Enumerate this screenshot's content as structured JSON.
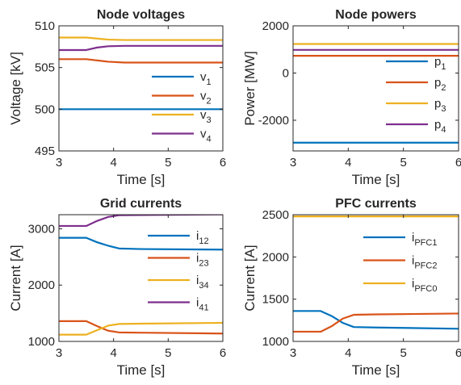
{
  "chart_data": [
    {
      "type": "line",
      "title": "Node voltages",
      "xlabel": "Time [s]",
      "ylabel": "Voltage [kV]",
      "xlim": [
        3,
        6
      ],
      "ylim": [
        495,
        510
      ],
      "xticks": [
        "3",
        "4",
        "5",
        "6"
      ],
      "yticks": [
        "495",
        "500",
        "505",
        "510"
      ],
      "legend_loc": "right",
      "series": [
        {
          "name": "v",
          "sub": "1",
          "color": "#0072BD",
          "x": [
            3,
            6
          ],
          "y": [
            500.0,
            500.0
          ]
        },
        {
          "name": "v",
          "sub": "2",
          "color": "#D95319",
          "x": [
            3,
            3.5,
            3.9,
            4.2,
            6
          ],
          "y": [
            506.0,
            506.0,
            505.7,
            505.6,
            505.6
          ]
        },
        {
          "name": "v",
          "sub": "3",
          "color": "#EDB120",
          "x": [
            3,
            3.5,
            3.9,
            4.2,
            6
          ],
          "y": [
            508.6,
            508.6,
            508.35,
            508.3,
            508.3
          ]
        },
        {
          "name": "v",
          "sub": "4",
          "color": "#7E2F8E",
          "x": [
            3,
            3.5,
            3.7,
            3.9,
            4.2,
            6
          ],
          "y": [
            507.1,
            507.1,
            507.4,
            507.55,
            507.6,
            507.6
          ]
        }
      ]
    },
    {
      "type": "line",
      "title": "Node powers",
      "xlabel": "Time [s]",
      "ylabel": "Power [MW]",
      "xlim": [
        3,
        6
      ],
      "ylim": [
        -3300,
        2000
      ],
      "xticks": [
        "3",
        "4",
        "5",
        "6"
      ],
      "yticks": [
        "-2000",
        "0",
        "2000"
      ],
      "ytick_values": [
        -2000,
        0,
        2000
      ],
      "legend_loc": "right",
      "series": [
        {
          "name": "p",
          "sub": "1",
          "color": "#0072BD",
          "x": [
            3,
            6
          ],
          "y": [
            -2950,
            -2950
          ]
        },
        {
          "name": "p",
          "sub": "2",
          "color": "#D95319",
          "x": [
            3,
            6
          ],
          "y": [
            730,
            730
          ]
        },
        {
          "name": "p",
          "sub": "3",
          "color": "#EDB120",
          "x": [
            3,
            6
          ],
          "y": [
            1230,
            1230
          ]
        },
        {
          "name": "p",
          "sub": "4",
          "color": "#7E2F8E",
          "x": [
            3,
            6
          ],
          "y": [
            980,
            980
          ]
        }
      ]
    },
    {
      "type": "line",
      "title": "Grid currents",
      "xlabel": "Time [s]",
      "ylabel": "Current [A]",
      "xlim": [
        3,
        6
      ],
      "ylim": [
        1000,
        3250
      ],
      "xticks": [
        "3",
        "4",
        "5",
        "6"
      ],
      "yticks": [
        "1000",
        "2000",
        "3000"
      ],
      "ytick_values": [
        1000,
        2000,
        3000
      ],
      "legend_loc": "right",
      "series": [
        {
          "name": "i",
          "sub": "12",
          "color": "#0072BD",
          "x": [
            3,
            3.5,
            3.7,
            3.9,
            4.1,
            4.5,
            6
          ],
          "y": [
            2840,
            2840,
            2760,
            2700,
            2650,
            2640,
            2630
          ]
        },
        {
          "name": "i",
          "sub": "23",
          "color": "#D95319",
          "x": [
            3,
            3.5,
            3.7,
            3.9,
            4.1,
            4.5,
            6
          ],
          "y": [
            1360,
            1360,
            1270,
            1190,
            1160,
            1155,
            1140
          ]
        },
        {
          "name": "i",
          "sub": "34",
          "color": "#EDB120",
          "x": [
            3,
            3.5,
            3.7,
            3.9,
            4.1,
            4.5,
            6
          ],
          "y": [
            1120,
            1120,
            1200,
            1280,
            1310,
            1315,
            1330
          ]
        },
        {
          "name": "i",
          "sub": "41",
          "color": "#7E2F8E",
          "x": [
            3,
            3.5,
            3.7,
            3.9,
            4.1,
            4.5,
            6
          ],
          "y": [
            3050,
            3050,
            3140,
            3210,
            3240,
            3245,
            3255
          ]
        }
      ]
    },
    {
      "type": "line",
      "title": "PFC currents",
      "xlabel": "Time [s]",
      "ylabel": "Current [A]",
      "xlim": [
        3,
        6
      ],
      "ylim": [
        1000,
        2500
      ],
      "xticks": [
        "3",
        "4",
        "5",
        "6"
      ],
      "yticks": [
        "1000",
        "1500",
        "2000",
        "2500"
      ],
      "ytick_values": [
        1000,
        1500,
        2000,
        2500
      ],
      "legend_loc": "right",
      "series": [
        {
          "name": "i",
          "sub": "PFC1",
          "color": "#0072BD",
          "x": [
            3,
            3.5,
            3.7,
            3.9,
            4.1,
            4.5,
            6
          ],
          "y": [
            1360,
            1360,
            1300,
            1220,
            1170,
            1165,
            1150
          ]
        },
        {
          "name": "i",
          "sub": "PFC2",
          "color": "#D95319",
          "x": [
            3,
            3.5,
            3.7,
            3.9,
            4.1,
            4.5,
            6
          ],
          "y": [
            1115,
            1115,
            1180,
            1270,
            1315,
            1320,
            1330
          ]
        },
        {
          "name": "i",
          "sub": "PFC0",
          "color": "#EDB120",
          "x": [
            3,
            6
          ],
          "y": [
            2480,
            2480
          ]
        }
      ]
    }
  ]
}
